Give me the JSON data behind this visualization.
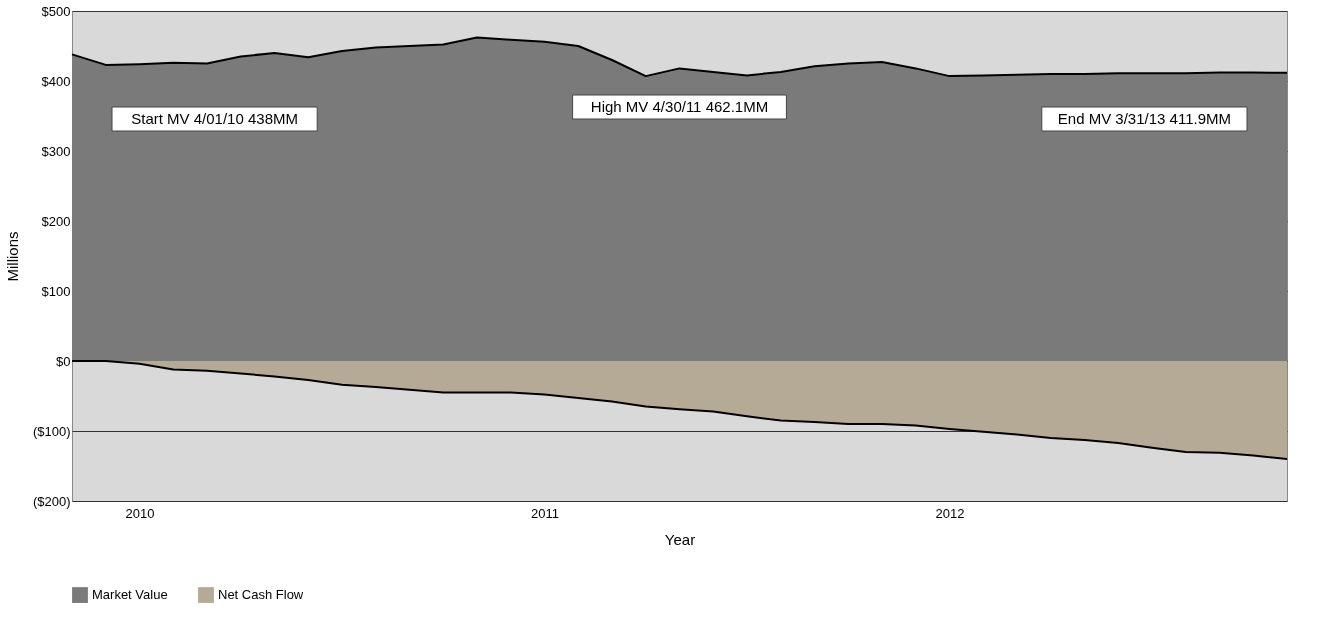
{
  "chart_data": {
    "type": "area",
    "xlabel": "Year",
    "ylabel": "Millions",
    "categories": [
      null,
      null,
      "2010",
      null,
      null,
      null,
      null,
      null,
      null,
      null,
      null,
      null,
      null,
      null,
      "2011",
      null,
      null,
      null,
      null,
      null,
      null,
      null,
      null,
      null,
      null,
      null,
      "2012",
      null,
      null,
      null,
      null,
      null,
      null,
      null,
      null,
      null,
      null
    ],
    "ylim": [
      -200,
      500
    ],
    "yticks": [
      {
        "value": -200,
        "label": "($200)"
      },
      {
        "value": -100,
        "label": "($100)"
      },
      {
        "value": 0,
        "label": "$0"
      },
      {
        "value": 100,
        "label": "$100"
      },
      {
        "value": 200,
        "label": "$200"
      },
      {
        "value": 300,
        "label": "$300"
      },
      {
        "value": 400,
        "label": "$400"
      },
      {
        "value": 500,
        "label": "$500"
      }
    ],
    "grid": "y",
    "legend": "bottom",
    "series": [
      {
        "name": "Market Value",
        "color": "#7a7a7a",
        "values": [
          438,
          423,
          424,
          426,
          425,
          435,
          440,
          434,
          443,
          448,
          450,
          452,
          462.1,
          459,
          456,
          450,
          430,
          407,
          418,
          413,
          408,
          413,
          421,
          425,
          427,
          418,
          407,
          408,
          409,
          410,
          410,
          411,
          411,
          411,
          412,
          412,
          411.9
        ]
      },
      {
        "name": "Net Cash Flow",
        "color": "#b5aa96",
        "values": [
          0,
          0,
          -4,
          -12,
          -14,
          -18,
          -22,
          -27,
          -34,
          -37,
          -41,
          -45,
          -45,
          -45,
          -48,
          -53,
          -58,
          -65,
          -69,
          -72,
          -79,
          -85,
          -87,
          -90,
          -90,
          -92,
          -97,
          -101,
          -105,
          -110,
          -113,
          -117,
          -124,
          -130,
          -131,
          -135,
          -140
        ]
      }
    ],
    "annotations": [
      "Start MV 4/01/10 438MM",
      "High MV 4/30/11 462.1MM",
      "End MV 3/31/13 411.9MM"
    ]
  }
}
